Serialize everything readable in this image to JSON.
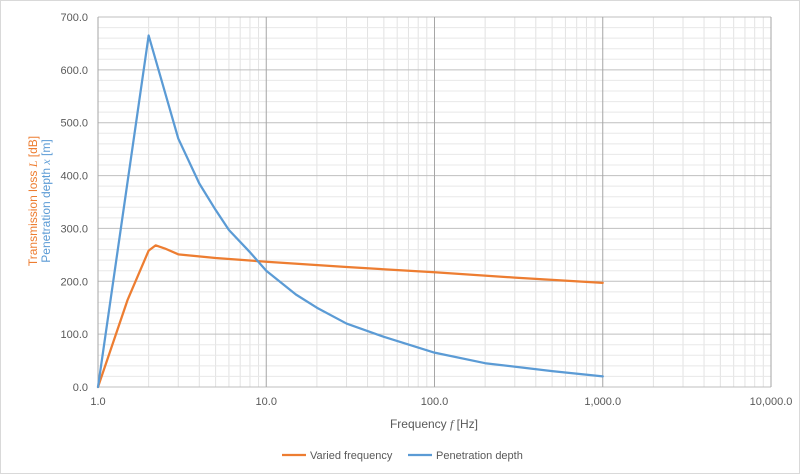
{
  "chart_data": {
    "type": "line",
    "xscale": "log",
    "xlim": [
      1,
      10000
    ],
    "ylim": [
      0,
      700
    ],
    "grid": true,
    "legend_position": "bottom",
    "xlabel_parts": [
      "Frequency ",
      "f",
      " [Hz]"
    ],
    "ylabel_lines": [
      {
        "parts": [
          "Transmission loss ",
          "L",
          " [dB]"
        ],
        "color": "#ED7D31"
      },
      {
        "parts": [
          "Penetration depth ",
          "x",
          " [m]"
        ],
        "color": "#5B9BD5"
      }
    ],
    "y_ticks": [
      {
        "value": 0,
        "label": "0.0"
      },
      {
        "value": 100,
        "label": "100.0"
      },
      {
        "value": 200,
        "label": "200.0"
      },
      {
        "value": 300,
        "label": "300.0"
      },
      {
        "value": 400,
        "label": "400.0"
      },
      {
        "value": 500,
        "label": "500.0"
      },
      {
        "value": 600,
        "label": "600.0"
      },
      {
        "value": 700,
        "label": "700.0"
      }
    ],
    "x_ticks": [
      {
        "value": 1,
        "label": "1.0"
      },
      {
        "value": 10,
        "label": "10.0"
      },
      {
        "value": 100,
        "label": "100.0"
      },
      {
        "value": 1000,
        "label": "1,000.0"
      },
      {
        "value": 10000,
        "label": "10,000.0"
      }
    ],
    "series": [
      {
        "name": "Varied frequency",
        "color": "#ED7D31",
        "x": [
          1,
          1.5,
          2,
          2.2,
          2.5,
          3,
          5,
          10,
          30,
          100,
          300,
          1000
        ],
        "y": [
          0,
          165,
          258,
          268,
          262,
          251,
          244,
          237,
          227,
          217,
          207,
          197
        ]
      },
      {
        "name": "Penetration depth",
        "color": "#5B9BD5",
        "x": [
          1,
          2,
          3,
          4,
          5,
          6,
          8,
          10,
          15,
          20,
          30,
          50,
          100,
          200,
          500,
          1000
        ],
        "y": [
          0,
          665,
          470,
          385,
          335,
          297,
          255,
          220,
          175,
          150,
          120,
          95,
          65,
          45,
          30,
          20
        ]
      }
    ]
  }
}
